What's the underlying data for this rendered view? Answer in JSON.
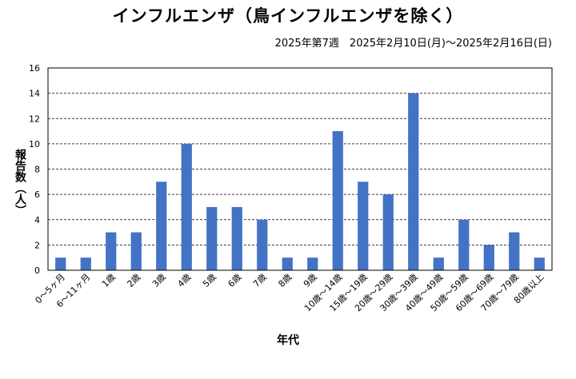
{
  "chart_data": {
    "type": "bar",
    "title": "インフルエンザ（鳥インフルエンザを除く）",
    "subtitle": "2025年第7週　2025年2月10日(月)～2025年2月16日(日)",
    "xlabel": "年代",
    "ylabel": "報告数（人）",
    "ylim": [
      0,
      16
    ],
    "yticks": [
      0,
      2,
      4,
      6,
      8,
      10,
      12,
      14,
      16
    ],
    "grid": true,
    "legend": "none",
    "categories": [
      "0～5ヶ月",
      "6～11ヶ月",
      "1歳",
      "2歳",
      "3歳",
      "4歳",
      "5歳",
      "6歳",
      "7歳",
      "8歳",
      "9歳",
      "10歳～14歳",
      "15歳～19歳",
      "20歳～29歳",
      "30歳～39歳",
      "40歳～49歳",
      "50歳～59歳",
      "60歳～69歳",
      "70歳～79歳",
      "80歳以上"
    ],
    "values": [
      1,
      1,
      3,
      3,
      7,
      10,
      5,
      5,
      4,
      1,
      1,
      11,
      7,
      6,
      14,
      1,
      4,
      2,
      3,
      1
    ],
    "bar_color": "#4472c4"
  }
}
